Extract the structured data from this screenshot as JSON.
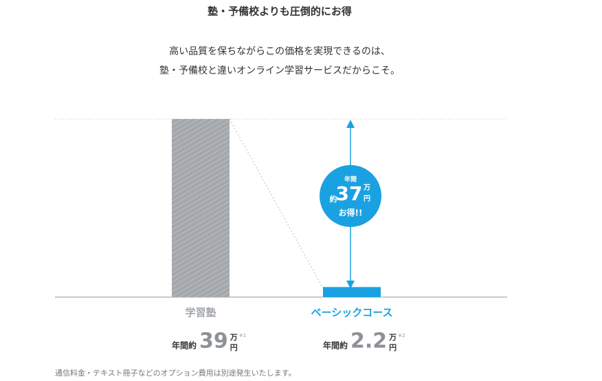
{
  "chart_data": {
    "type": "bar",
    "title": "塾・予備校よりも圧倒的にお得",
    "subtitle": [
      "高い品質を保ちながらこの価格を実現できるのは、",
      "塾・予備校と違いオンライン学習サービスだからこそ。"
    ],
    "categories": [
      "学習塾",
      "ベーシックコース"
    ],
    "values": [
      39,
      2.2
    ],
    "colors": [
      "#a4a8ac",
      "#1aa1e2"
    ],
    "hatched": [
      true,
      false
    ],
    "value_prefix": "年間約",
    "value_unit": [
      "万",
      "円"
    ],
    "notes": [
      "※1",
      "※2"
    ],
    "annotation": {
      "prefix": "年間",
      "approx": "約",
      "value": 37,
      "unit": [
        "万",
        "円"
      ],
      "suffix": "お得!!"
    },
    "footnote": "通信料金・テキスト冊子などのオプション費用は別途発生いたします。"
  }
}
